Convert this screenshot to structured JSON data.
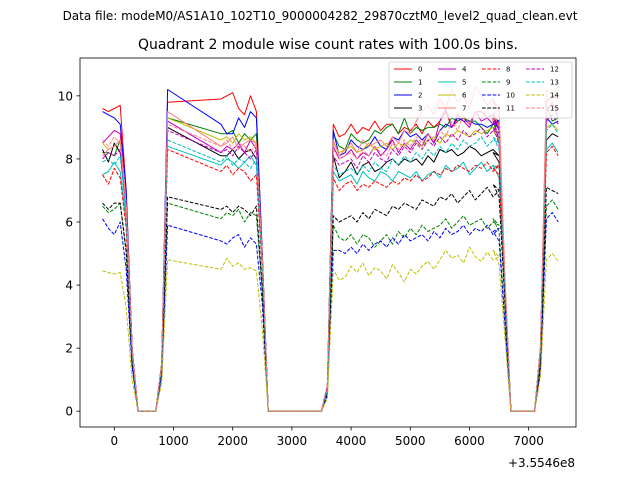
{
  "suptitle": "Data file: modeM0/AS1A10_102T10_9000004282_29870cztM0_level2_quad_clean.evt",
  "chart_data": {
    "type": "line",
    "title": "Quadrant 2 module wise count rates with 100.0s bins.",
    "xlabel": "",
    "ylabel": "",
    "x_offset_label": "+3.5546e8",
    "xlim": [
      -580,
      7800
    ],
    "ylim": [
      -0.5,
      11.2
    ],
    "xticks": [
      0,
      1000,
      2000,
      3000,
      4000,
      5000,
      6000,
      7000
    ],
    "yticks": [
      0,
      2,
      4,
      6,
      8,
      10
    ],
    "legend_location": "top-right",
    "legend_columns": 4,
    "x_step": 100,
    "segments": [
      {
        "x_start": -200,
        "n": 7
      },
      {
        "x_start": 500,
        "n": 5
      },
      {
        "x_start": 1800,
        "n": 17
      },
      {
        "x_start": 3400,
        "n": 32
      },
      {
        "x_start": 6400,
        "n": 5
      },
      {
        "x_start": 7000,
        "n": 6
      }
    ],
    "series": [
      {
        "name": "0",
        "color": "#ff0000",
        "dash": "solid",
        "values": [
          9.6,
          9.5,
          9.6,
          9.7,
          7,
          2,
          0,
          0,
          0,
          0,
          1.5,
          9.8,
          9.9,
          10,
          10.1,
          9.6,
          9.4,
          10,
          9.5,
          5,
          0,
          0,
          0,
          0,
          0,
          0,
          0,
          0,
          0,
          0,
          0,
          0.8,
          9.1,
          8.7,
          8.8,
          9.1,
          8.8,
          9,
          8.9,
          9.2,
          8.9,
          9.1,
          9.1,
          8.8,
          9,
          8.9,
          9.1,
          8.8,
          9.2,
          9,
          9.2,
          9.5,
          9,
          9.2,
          9.3,
          9.1,
          9.5,
          9.5,
          9.3,
          9.4,
          9.1,
          9.3,
          9,
          4,
          0,
          0,
          0,
          0,
          2,
          9.8,
          10,
          9.9,
          9.6,
          8.6
        ]
      },
      {
        "name": "1",
        "color": "#008000",
        "dash": "solid",
        "values": [
          8.2,
          8.2,
          8.1,
          8.6,
          6.5,
          2,
          0,
          0,
          0,
          0,
          1.5,
          9.3,
          8.8,
          8.8,
          8.9,
          8.5,
          8.8,
          8.6,
          8.8,
          4.8,
          0,
          0,
          0,
          0,
          0,
          0,
          0,
          0,
          0,
          0,
          0,
          0.8,
          8.8,
          8.4,
          8.3,
          8.8,
          8.6,
          8.5,
          8.6,
          8.9,
          8.8,
          9,
          9.1,
          8.8,
          9.3,
          8.8,
          9,
          8.9,
          9,
          9,
          9.1,
          9,
          9.3,
          9.2,
          9.3,
          9.2,
          9.2,
          9,
          8.8,
          9.1,
          9,
          9.2,
          8.6,
          4,
          0,
          0,
          0,
          0,
          2,
          9.7,
          9.2,
          9.3,
          9.1,
          8
        ]
      },
      {
        "name": "2",
        "color": "#0000ff",
        "dash": "solid",
        "values": [
          9.5,
          9.4,
          9.3,
          9.1,
          7,
          2,
          0,
          0,
          0,
          0,
          1.5,
          10.2,
          9.1,
          8.8,
          8.8,
          9.3,
          9,
          9.5,
          9.3,
          5,
          0,
          0,
          0,
          0,
          0,
          0,
          0,
          0,
          0,
          0,
          0,
          0.8,
          8.9,
          8.1,
          8.2,
          8.6,
          8.4,
          8.3,
          8.4,
          8.7,
          8.4,
          8.3,
          8.7,
          8.6,
          8.9,
          8.7,
          8.8,
          8.6,
          8.8,
          8.5,
          8.9,
          9.1,
          9,
          9.3,
          9.2,
          9.2,
          9.1,
          9.1,
          9,
          9.1,
          9.2,
          9.3,
          8.9,
          4,
          0,
          0,
          0,
          0,
          2,
          9.3,
          9.1,
          9.2,
          9.1,
          8.3
        ]
      },
      {
        "name": "3",
        "color": "#000000",
        "dash": "solid",
        "values": [
          8.3,
          7.9,
          8.5,
          8.2,
          6.5,
          2,
          0,
          0,
          0,
          0,
          1.5,
          9,
          8.1,
          8.1,
          8.3,
          8,
          8.2,
          8.3,
          8,
          4.8,
          0,
          0,
          0,
          0,
          0,
          0,
          0,
          0,
          0,
          0,
          0,
          0.8,
          8.1,
          7.4,
          7.6,
          7.9,
          7.5,
          7.8,
          7.9,
          7.6,
          7.7,
          7.9,
          8,
          7.8,
          8,
          7.9,
          8,
          7.8,
          8.1,
          7.9,
          8.3,
          8.2,
          8.3,
          8.1,
          8.2,
          8.4,
          8.3,
          8.1,
          8.2,
          8.3,
          8.1,
          8.2,
          7.9,
          3.8,
          0,
          0,
          0,
          0,
          1.8,
          8.6,
          8.8,
          8.7,
          8.8,
          7.8
        ]
      },
      {
        "name": "4",
        "color": "#bf00bf",
        "dash": "solid",
        "values": [
          8.5,
          8.7,
          8.9,
          8.8,
          6.5,
          2,
          0,
          0,
          0,
          0,
          1.5,
          9.2,
          8.2,
          8.4,
          8.3,
          8.5,
          8.2,
          8.6,
          8.3,
          4.8,
          0,
          0,
          0,
          0,
          0,
          0,
          0,
          0,
          0,
          0,
          0,
          0.8,
          8.4,
          8,
          8.1,
          8.3,
          8,
          8.2,
          8.1,
          8.4,
          8.1,
          8.3,
          8.6,
          8.2,
          8.5,
          8.3,
          8.6,
          8.4,
          8.8,
          8.5,
          9.2,
          9.6,
          9,
          9.4,
          9.2,
          9,
          9.5,
          9.2,
          9.3,
          9.1,
          9,
          9.4,
          8.5,
          4,
          0,
          0,
          0,
          0,
          2,
          9.5,
          9.8,
          9.3,
          9.6,
          8.2
        ]
      },
      {
        "name": "5",
        "color": "#00bfbf",
        "dash": "solid",
        "values": [
          7.5,
          7.6,
          7.9,
          7.6,
          6,
          1.8,
          0,
          0,
          0,
          0,
          1.4,
          8.4,
          7.8,
          8,
          7.9,
          7.7,
          7.9,
          8.1,
          7.8,
          4.5,
          0,
          0,
          0,
          0,
          0,
          0,
          0,
          0,
          0,
          0,
          0,
          0.7,
          7.6,
          7.3,
          7.4,
          7.5,
          7.2,
          7.6,
          7.4,
          7.3,
          7.6,
          7.5,
          7.3,
          7.6,
          7.5,
          7.4,
          7.6,
          7.3,
          7.5,
          7.6,
          7.4,
          7.8,
          7.6,
          7.7,
          7.9,
          7.5,
          7.7,
          7.9,
          7.6,
          7.8,
          7.7,
          7.8,
          7.4,
          3.6,
          0,
          0,
          0,
          0,
          1.8,
          8.3,
          8.5,
          8.2,
          8.4,
          7.5
        ]
      },
      {
        "name": "6",
        "color": "#bfbf00",
        "dash": "solid",
        "values": [
          8.5,
          8.3,
          8.4,
          8.6,
          6.5,
          1.9,
          0,
          0,
          0,
          0,
          1.5,
          9.3,
          8.6,
          8.7,
          8.5,
          8.8,
          8.6,
          8.7,
          8.5,
          4.8,
          0,
          0,
          0,
          0,
          0,
          0,
          0,
          0,
          0,
          0,
          0,
          0.8,
          8.5,
          8.2,
          8.3,
          8.4,
          8.2,
          8.3,
          8.5,
          8.3,
          8.4,
          8.5,
          8.3,
          8.5,
          8.4,
          8.6,
          8.5,
          8.4,
          8.6,
          8.7,
          8.5,
          8.8,
          8.7,
          8.9,
          8.8,
          8.7,
          8.9,
          8.8,
          8.9,
          9,
          8.8,
          8.9,
          8.6,
          4,
          0,
          0,
          0,
          0,
          2,
          9,
          9.1,
          8.9,
          9,
          8.2
        ]
      },
      {
        "name": "7",
        "color": "#ff7f7f",
        "dash": "solid",
        "values": [
          8.1,
          8.3,
          8.4,
          8.6,
          6.5,
          2,
          0,
          0,
          0,
          0,
          1.5,
          9.5,
          8.4,
          8.5,
          8.7,
          8.3,
          8.5,
          8.6,
          8.5,
          4.8,
          0,
          0,
          0,
          0,
          0,
          0,
          0,
          0,
          0,
          0,
          0,
          0.8,
          8.6,
          8.1,
          8.3,
          8.5,
          8.2,
          8.6,
          8.4,
          8.5,
          8.6,
          8.4,
          8.7,
          8.5,
          8.9,
          8.8,
          9.2,
          9.5,
          9.7,
          9.4,
          9.9,
          9.6,
          10.2,
          9.8,
          10,
          9.6,
          10.3,
          10,
          9.7,
          9.9,
          9.5,
          9.8,
          9.6,
          4.2,
          0,
          0,
          0,
          0,
          2.1,
          10.2,
          10,
          10.3,
          9.9,
          8.8
        ]
      },
      {
        "name": "8",
        "color": "#ff0000",
        "dash": "dashed",
        "values": [
          7.5,
          7.2,
          7.7,
          7.4,
          5.8,
          1.7,
          0,
          0,
          0,
          0,
          1.4,
          8.3,
          7.6,
          7.8,
          7.5,
          7.7,
          7.6,
          7.3,
          7.5,
          4.5,
          0,
          0,
          0,
          0,
          0,
          0,
          0,
          0,
          0,
          0,
          0,
          0.7,
          7.4,
          7,
          7.2,
          7.3,
          7,
          7.2,
          7.1,
          7.3,
          7.2,
          7.1,
          7.3,
          7.2,
          7.4,
          7.3,
          7.5,
          7.3,
          7.4,
          7.6,
          7.5,
          7.7,
          7.6,
          7.8,
          7.7,
          7.6,
          7.8,
          7.7,
          7.9,
          7.6,
          7.8,
          7.7,
          7.5,
          3.6,
          0,
          0,
          0,
          0,
          1.8,
          8.2,
          8.4,
          8.1,
          8.3,
          7.4
        ]
      },
      {
        "name": "9",
        "color": "#008000",
        "dash": "dashed",
        "values": [
          6.5,
          6.3,
          6.4,
          6.6,
          5,
          1.5,
          0,
          0,
          0,
          0,
          1.2,
          6.6,
          6.1,
          6.3,
          6.2,
          6.4,
          6,
          6.3,
          6.2,
          3.8,
          0,
          0,
          0,
          0,
          0,
          0,
          0,
          0,
          0,
          0,
          0,
          0.6,
          5.9,
          5.5,
          5.4,
          5.6,
          5.3,
          5.6,
          5.5,
          5.2,
          5.4,
          5.6,
          5.3,
          5.7,
          5.5,
          5.8,
          5.6,
          5.9,
          5.7,
          5.8,
          5.9,
          6.1,
          5.8,
          6,
          6.2,
          5.9,
          6,
          6.1,
          5.8,
          6,
          5.9,
          6.1,
          5.7,
          2.8,
          0,
          0,
          0,
          0,
          1.4,
          6.5,
          6.7,
          6.4,
          6.6,
          5.8
        ]
      },
      {
        "name": "10",
        "color": "#0000ff",
        "dash": "dashed",
        "values": [
          6.1,
          5.8,
          5.6,
          6,
          4.5,
          1.4,
          0,
          0,
          0,
          0,
          1.1,
          5.9,
          5.4,
          5.3,
          5.5,
          5.6,
          5.2,
          5.5,
          5.3,
          3.4,
          0,
          0,
          0,
          0,
          0,
          0,
          0,
          0,
          0,
          0,
          0,
          0.5,
          5.1,
          5.1,
          5,
          5.2,
          5,
          5.3,
          5.1,
          5.3,
          5.4,
          5.2,
          5.5,
          5.3,
          5.6,
          5.4,
          5.5,
          5.6,
          5.4,
          5.7,
          5.5,
          5.8,
          5.6,
          5.7,
          5.9,
          5.6,
          5.8,
          5.7,
          5.9,
          5.6,
          5.8,
          5.7,
          5.4,
          2.7,
          0,
          0,
          0,
          0,
          1.3,
          6.1,
          6.3,
          6,
          6.2,
          5.4
        ]
      },
      {
        "name": "11",
        "color": "#000000",
        "dash": "dashed",
        "values": [
          6.6,
          6.4,
          6.6,
          6.6,
          5.1,
          1.6,
          0,
          0,
          0,
          0,
          1.3,
          6.8,
          6.4,
          6.5,
          6.3,
          6.5,
          6.4,
          6.2,
          6.5,
          3.9,
          0,
          0,
          0,
          0,
          0,
          0,
          0,
          0,
          0,
          0,
          0,
          0.6,
          6.2,
          6,
          6.1,
          6.2,
          6,
          6.3,
          6.1,
          6.4,
          6.3,
          6.2,
          6.5,
          6.4,
          6.6,
          6.5,
          6.4,
          6.7,
          6.6,
          6.5,
          6.8,
          6.7,
          6.9,
          6.6,
          6.8,
          7,
          6.7,
          6.9,
          7.1,
          6.8,
          7,
          7.2,
          6.8,
          3.4,
          0,
          0,
          0,
          0,
          1.5,
          7.1,
          7,
          6.9,
          6.8,
          5.9
        ]
      },
      {
        "name": "12",
        "color": "#bf00bf",
        "dash": "dashed",
        "values": [
          8,
          8.2,
          8.1,
          8.3,
          6.3,
          1.9,
          0,
          0,
          0,
          0,
          1.5,
          8.9,
          8.2,
          8.3,
          8.1,
          8.4,
          8.2,
          8,
          8.3,
          4.7,
          0,
          0,
          0,
          0,
          0,
          0,
          0,
          0,
          0,
          0,
          0,
          0.8,
          8.1,
          7.8,
          7.9,
          8,
          7.7,
          8.1,
          7.9,
          8.2,
          8,
          7.9,
          8.3,
          8.1,
          8.4,
          8.2,
          8.5,
          8.3,
          8.6,
          8.4,
          8.7,
          8.5,
          8.8,
          8.6,
          8.9,
          8.7,
          8.8,
          9,
          8.7,
          8.9,
          8.8,
          9,
          8.5,
          4,
          0,
          0,
          0,
          0,
          2,
          9.2,
          9.4,
          9.1,
          9.3,
          8.2
        ]
      },
      {
        "name": "13",
        "color": "#00bfbf",
        "dash": "dashed",
        "values": [
          7.9,
          8,
          7.8,
          8.1,
          6.2,
          1.8,
          0,
          0,
          0,
          0,
          1.4,
          8.6,
          7.9,
          8.1,
          7.8,
          8,
          7.9,
          7.7,
          8,
          4.6,
          0,
          0,
          0,
          0,
          0,
          0,
          0,
          0,
          0,
          0,
          0,
          0.7,
          7.8,
          7.5,
          7.6,
          7.7,
          7.5,
          7.8,
          7.6,
          7.9,
          7.7,
          7.6,
          8,
          7.8,
          8.1,
          7.9,
          8.2,
          8,
          8.3,
          8.1,
          8.4,
          8.2,
          8.5,
          8.3,
          8.6,
          8.4,
          8.5,
          8.7,
          8.4,
          8.6,
          8.5,
          8.7,
          8.3,
          3.9,
          0,
          0,
          0,
          0,
          1.9,
          8.9,
          9.1,
          8.8,
          9,
          7.9
        ]
      },
      {
        "name": "14",
        "color": "#bfbf00",
        "dash": "dashed",
        "values": [
          4.45,
          4.4,
          4.35,
          4.4,
          3.3,
          1,
          0,
          0,
          0,
          0,
          0.9,
          4.8,
          4.5,
          4.85,
          4.6,
          4.7,
          4.5,
          4.55,
          4.45,
          2.6,
          0,
          0,
          0,
          0,
          0,
          0,
          0,
          0,
          0,
          0,
          0,
          0.4,
          4.5,
          4.15,
          4.25,
          4.6,
          4.4,
          4.7,
          4.3,
          4.55,
          4.45,
          4.2,
          4.65,
          4.4,
          4.1,
          4.5,
          4.35,
          4.6,
          4.75,
          4.5,
          4.8,
          5.1,
          4.85,
          4.95,
          4.7,
          5.2,
          4.9,
          4.75,
          5.05,
          4.8,
          4.9,
          5.1,
          4.65,
          2.3,
          0,
          0,
          0,
          0,
          1.1,
          4.8,
          5,
          4.75,
          4.6,
          4.5
        ]
      },
      {
        "name": "15",
        "color": "#ff7f7f",
        "dash": "dashed",
        "values": [
          8.6,
          8.4,
          8.7,
          8.5,
          6.5,
          1.9,
          0,
          0,
          0,
          0,
          1.5,
          9.1,
          8.4,
          8.6,
          8.3,
          8.5,
          8.4,
          8.2,
          8.5,
          4.8,
          0,
          0,
          0,
          0,
          0,
          0,
          0,
          0,
          0,
          0,
          0,
          0.8,
          8.3,
          8,
          8.1,
          8.2,
          8,
          8.3,
          8.1,
          8.4,
          8.2,
          8.1,
          8.5,
          8.3,
          8.6,
          8.4,
          8.7,
          8.5,
          8.8,
          8.6,
          8.9,
          8.7,
          9.2,
          8.9,
          9.4,
          9.1,
          9.5,
          9.3,
          9.6,
          9.2,
          9.4,
          9.5,
          9,
          4.2,
          0,
          0,
          0,
          0,
          2,
          9.6,
          9.8,
          9.5,
          9.7,
          8.5
        ]
      }
    ]
  }
}
